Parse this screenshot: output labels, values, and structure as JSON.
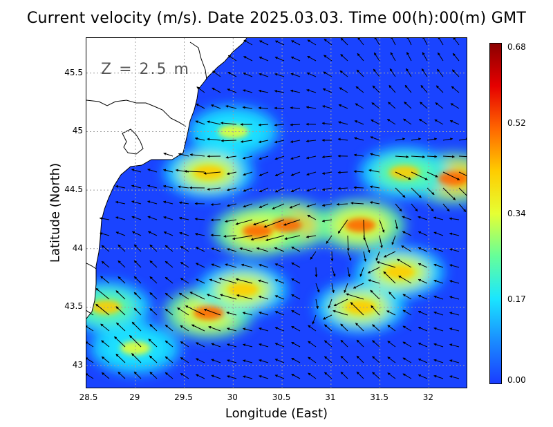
{
  "title": "Current velocity (m/s). Date 2025.03.03. Time 00(h):00(m) GMT",
  "depth_label": "Z = 2.5 m",
  "axes": {
    "xlabel": "Longitude (East)",
    "ylabel": "Latitude (North)",
    "xlim": [
      28.5,
      32.4
    ],
    "ylim": [
      42.8,
      45.8
    ],
    "xticks": [
      "28.5",
      "29",
      "29.5",
      "30",
      "30.5",
      "31",
      "31.5",
      "32"
    ],
    "yticks": [
      "43",
      "43.5",
      "44",
      "44.5",
      "45",
      "45.5"
    ]
  },
  "colorbar": {
    "min": 0.0,
    "max": 0.68,
    "labels": [
      "0.68",
      "0.52",
      "0.34",
      "0.17",
      "0.00"
    ],
    "colors": [
      "#1a3cff",
      "#1a8cff",
      "#1ae6ff",
      "#66ff99",
      "#e6ff33",
      "#ffcc00",
      "#ff6600",
      "#e60000",
      "#8b0000"
    ]
  },
  "colors": {
    "land": "#ffffff",
    "coastline": "#000000",
    "grid": "#a0a0a0",
    "arrows": "#000000",
    "sea_base": "#1a44ff"
  },
  "chart_data": {
    "type": "heatmap",
    "variable": "Current velocity (m/s)",
    "grid": "on",
    "high_speed_features": [
      {
        "lon": 30.55,
        "lat": 44.2,
        "speed": 0.55
      },
      {
        "lon": 30.25,
        "lat": 44.15,
        "speed": 0.5
      },
      {
        "lon": 29.75,
        "lat": 44.65,
        "speed": 0.45
      },
      {
        "lon": 30.0,
        "lat": 45.0,
        "speed": 0.3
      },
      {
        "lon": 31.3,
        "lat": 44.2,
        "speed": 0.5
      },
      {
        "lon": 31.7,
        "lat": 43.8,
        "speed": 0.45
      },
      {
        "lon": 31.3,
        "lat": 43.5,
        "speed": 0.45
      },
      {
        "lon": 32.25,
        "lat": 44.6,
        "speed": 0.55
      },
      {
        "lon": 31.75,
        "lat": 44.65,
        "speed": 0.4
      },
      {
        "lon": 29.75,
        "lat": 43.45,
        "speed": 0.5
      },
      {
        "lon": 30.1,
        "lat": 43.65,
        "speed": 0.45
      },
      {
        "lon": 28.7,
        "lat": 43.5,
        "speed": 0.4
      },
      {
        "lon": 29.0,
        "lat": 43.15,
        "speed": 0.3
      }
    ]
  }
}
